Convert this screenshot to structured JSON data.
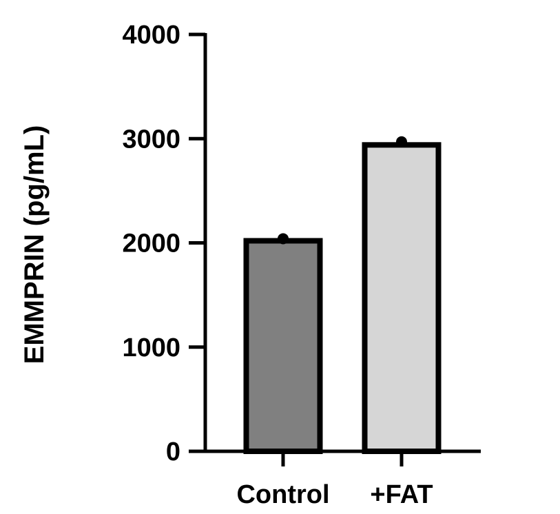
{
  "chart_data": {
    "type": "bar",
    "categories": [
      "Control",
      "+FAT"
    ],
    "values": [
      2020,
      2940
    ],
    "points": [
      2040,
      2970
    ],
    "ylabel": "EMMPRIN (pg/mL)",
    "ylim": [
      0,
      4000
    ],
    "yticks": [
      "0",
      "1000",
      "2000",
      "3000",
      "4000"
    ],
    "grid": false,
    "legend": "none",
    "colors": {
      "bar_fills": [
        "#808080",
        "#d6d6d6"
      ],
      "outline": "#000000",
      "point": "#000000"
    }
  }
}
